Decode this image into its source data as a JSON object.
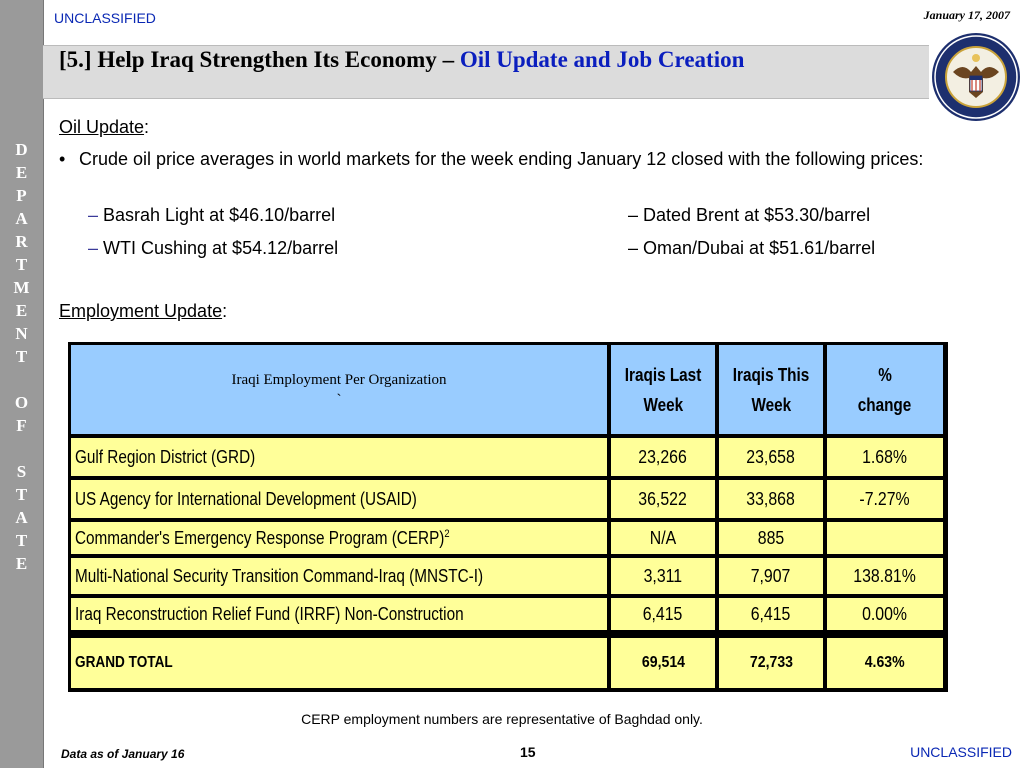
{
  "classification_top": "UNCLASSIFIED",
  "classification_bottom": "UNCLASSIFIED",
  "date": "January 17, 2007",
  "sidebar_letters": [
    "D",
    "E",
    "P",
    "A",
    "R",
    "T",
    "M",
    "E",
    "N",
    "T",
    "O",
    "F",
    "S",
    "T",
    "A",
    "T",
    "E"
  ],
  "title": {
    "main": "[5.] Help Iraq Strengthen Its Economy",
    "sep": " – ",
    "accent": "Oil Update and Job Creation"
  },
  "oil": {
    "heading": "Oil Update",
    "bullet_mark": "•",
    "bullet": "Crude oil price averages in world markets for the week ending January 12 closed with the following prices:",
    "prices": [
      "Basrah Light at $46.10/barrel",
      "– Dated Brent at $53.30/barrel",
      "WTI Cushing at $54.12/barrel",
      "– Oman/Dubai at $51.61/barrel"
    ]
  },
  "employment": {
    "heading": "Employment Update",
    "header_org": "Iraqi Employment Per Organization",
    "header_tick": "`",
    "col_last": [
      "Iraqis Last",
      "Week"
    ],
    "col_this": [
      "Iraqis This",
      "Week"
    ],
    "col_pct": [
      "%",
      "change"
    ],
    "rows": [
      {
        "org": "Gulf Region District (GRD)",
        "last": "23,266",
        "this": "23,658",
        "pct": "1.68%"
      },
      {
        "org": "US Agency for International Development (USAID)",
        "last": "36,522",
        "this": "33,868",
        "pct": "-7.27%"
      },
      {
        "org": "Commander's Emergency Response Program (CERP)",
        "sup": "2",
        "last": "N/A",
        "this": "885",
        "pct": ""
      },
      {
        "org": "Multi-National Security Transition Command-Iraq (MNSTC-I)",
        "last": "3,311",
        "this": "7,907",
        "pct": "138.81%"
      },
      {
        "org": "Iraq Reconstruction Relief Fund (IRRF) Non-Construction",
        "last": "6,415",
        "this": "6,415",
        "pct": "0.00%"
      }
    ],
    "total": {
      "label": "GRAND TOTAL",
      "last": "69,514",
      "this": "72,733",
      "pct": "4.63%"
    },
    "note": "CERP employment numbers are representative of Baghdad only."
  },
  "footer": {
    "data_as_of": "Data as of January 16",
    "page": "15"
  },
  "colors": {
    "header_fill": "#99ccff",
    "row_fill": "#ffff99",
    "accent": "#0a1ebe",
    "classification": "#0a28b4"
  },
  "icons": {
    "seal": "department-of-state-seal-icon"
  }
}
